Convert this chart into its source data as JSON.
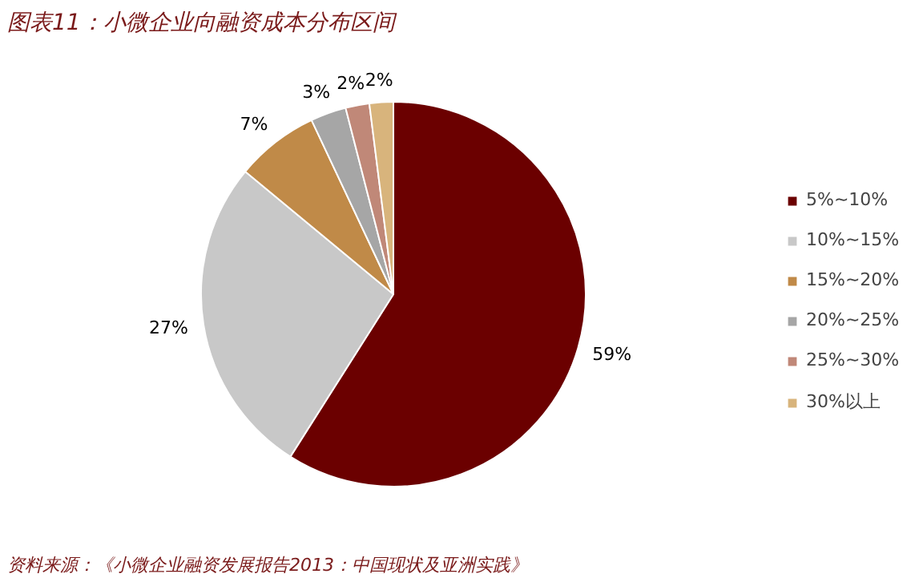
{
  "chart_data": {
    "type": "pie",
    "title": "图表11：小微企业向融资成本分布区间",
    "categories": [
      "5%~10%",
      "10%~15%",
      "15%~20%",
      "20%~25%",
      "25%~30%",
      "30%以上"
    ],
    "values": [
      59,
      27,
      7,
      3,
      2,
      2
    ],
    "colors": [
      "#6b0000",
      "#c8c8c8",
      "#c08a48",
      "#a6a6a6",
      "#c08878",
      "#d8b47c"
    ],
    "value_labels": [
      "59%",
      "27%",
      "7%",
      "3%",
      "2%",
      "2%"
    ],
    "legend": "right",
    "annotations": [
      "资料来源：《小微企业融资发展报告2013：中国现状及亚洲实践》"
    ]
  }
}
